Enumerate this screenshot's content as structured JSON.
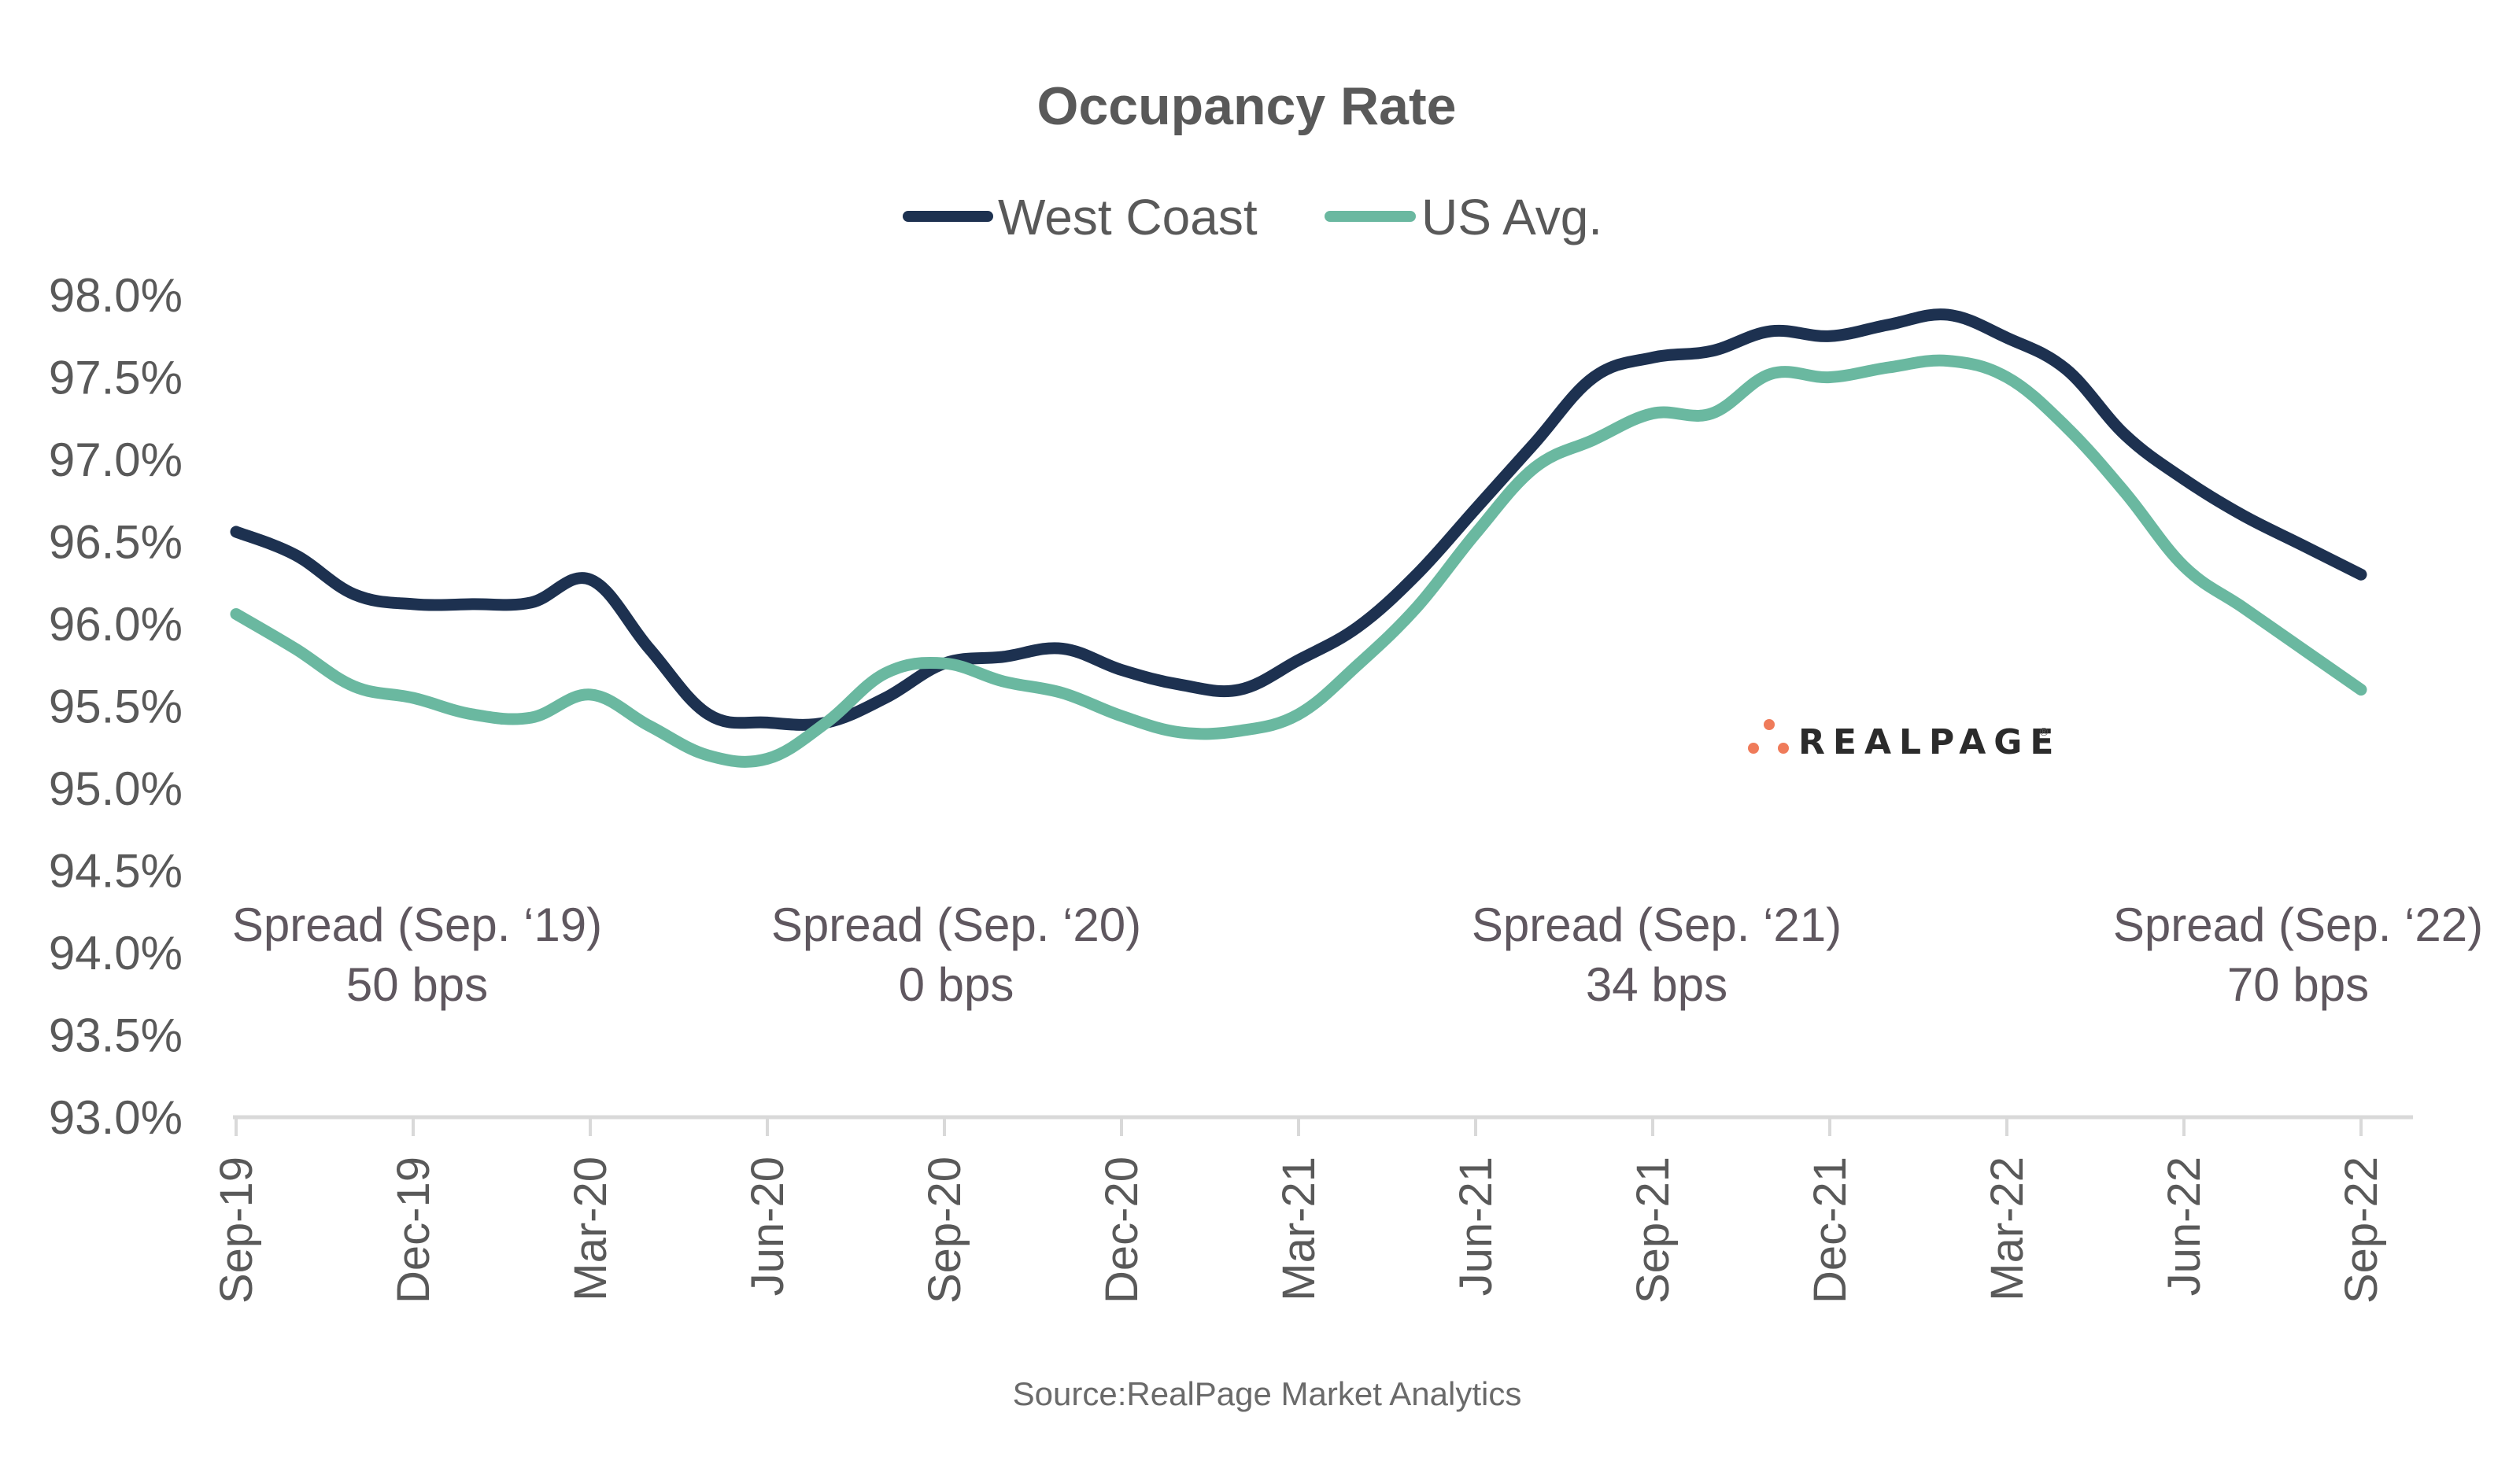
{
  "chart_data": {
    "type": "line",
    "title": "Occupancy Rate",
    "xlabel": "",
    "ylabel": "",
    "ylim": [
      93.0,
      98.0
    ],
    "y_ticks": [
      "93.0%",
      "93.5%",
      "94.0%",
      "94.5%",
      "95.0%",
      "95.5%",
      "96.0%",
      "96.5%",
      "97.0%",
      "97.5%",
      "98.0%"
    ],
    "y_tick_values": [
      93.0,
      93.5,
      94.0,
      94.5,
      95.0,
      95.5,
      96.0,
      96.5,
      97.0,
      97.5,
      98.0
    ],
    "x_ticks": [
      "Sep-19",
      "Dec-19",
      "Mar-20",
      "Jun-20",
      "Sep-20",
      "Dec-20",
      "Mar-21",
      "Jun-21",
      "Sep-21",
      "Dec-21",
      "Mar-22",
      "Jun-22",
      "Sep-22"
    ],
    "x": [
      "Sep-19",
      "Oct-19",
      "Nov-19",
      "Dec-19",
      "Jan-20",
      "Feb-20",
      "Mar-20",
      "Apr-20",
      "May-20",
      "Jun-20",
      "Jul-20",
      "Aug-20",
      "Sep-20",
      "Oct-20",
      "Nov-20",
      "Dec-20",
      "Jan-21",
      "Feb-21",
      "Mar-21",
      "Apr-21",
      "May-21",
      "Jun-21",
      "Jul-21",
      "Aug-21",
      "Sep-21",
      "Oct-21",
      "Nov-21",
      "Dec-21",
      "Jan-22",
      "Feb-22",
      "Mar-22",
      "Apr-22",
      "May-22",
      "Jun-22",
      "Jul-22",
      "Aug-22",
      "Sep-22"
    ],
    "series": [
      {
        "name": "West Coast",
        "color": "#1d3150",
        "values": [
          96.56,
          96.42,
          96.18,
          96.12,
          96.12,
          96.13,
          96.27,
          95.85,
          95.45,
          95.4,
          95.4,
          95.55,
          95.76,
          95.8,
          95.85,
          95.72,
          95.63,
          95.6,
          95.78,
          95.98,
          96.3,
          96.7,
          97.1,
          97.5,
          97.62,
          97.66,
          97.78,
          97.75,
          97.82,
          97.88,
          97.74,
          97.55,
          97.15,
          96.88,
          96.66,
          96.48,
          96.3
        ]
      },
      {
        "name": "US Avg.",
        "color": "#6ab8a0",
        "values": [
          96.06,
          95.85,
          95.62,
          95.55,
          95.45,
          95.43,
          95.57,
          95.38,
          95.2,
          95.18,
          95.4,
          95.7,
          95.76,
          95.65,
          95.58,
          95.44,
          95.34,
          95.35,
          95.45,
          95.75,
          96.1,
          96.55,
          96.95,
          97.12,
          97.28,
          97.28,
          97.52,
          97.5,
          97.56,
          97.6,
          97.5,
          97.2,
          96.8,
          96.35,
          96.1,
          95.85,
          95.6
        ]
      }
    ],
    "legend": {
      "placement": "top-center",
      "entries": [
        "West Coast",
        "US Avg."
      ]
    },
    "grid": false,
    "annotations": [
      {
        "line1": "Spread (Sep. ‘19)",
        "line2": "50 bps",
        "anchor": "Sep-19"
      },
      {
        "line1": "Spread (Sep. ‘20)",
        "line2": "0 bps",
        "anchor": "Sep-20"
      },
      {
        "line1": "Spread (Sep. ‘21)",
        "line2": "34 bps",
        "anchor": "Sep-21"
      },
      {
        "line1": "Spread (Sep. ‘22)",
        "line2": "70 bps",
        "anchor": "Sep-22"
      }
    ],
    "source": "Source:RealPage Market Analytics"
  },
  "logo": {
    "text": "REALPAGE",
    "mark": "®",
    "dot_color": "#ef7b5a"
  }
}
